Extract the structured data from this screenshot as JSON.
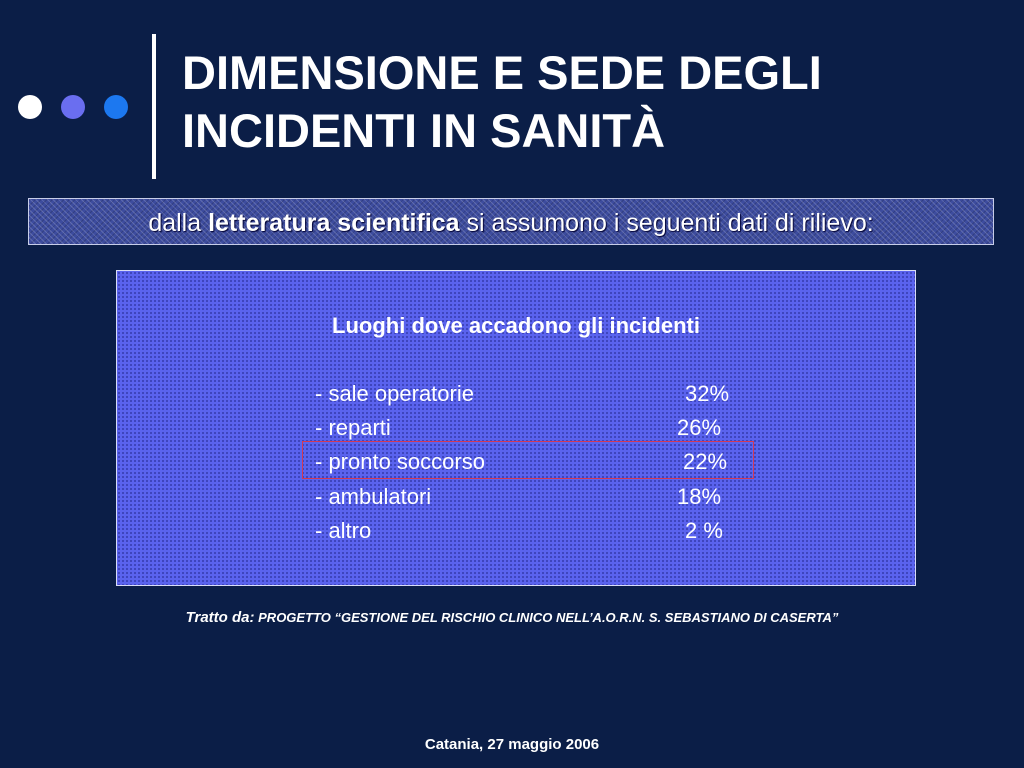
{
  "title": {
    "line1": "DIMENSIONE E SEDE DEGLI",
    "line2": "INCIDENTI IN SANITÀ"
  },
  "subtitle": {
    "prefix": "dalla ",
    "emphasis": "letteratura scientifica",
    "suffix": " si assumono i seguenti dati di rilievo:"
  },
  "panel": {
    "heading": "Luoghi dove accadono gli incidenti",
    "rows": [
      {
        "label": "- sale operatorie",
        "value": "32%"
      },
      {
        "label": "- reparti",
        "value": "26%"
      },
      {
        "label": "- pronto soccorso",
        "value": "22%"
      },
      {
        "label": "- ambulatori",
        "value": "18%"
      },
      {
        "label": "- altro",
        "value": "2 %"
      }
    ],
    "highlighted_row": 2
  },
  "source": {
    "label": "Tratto da:",
    "text": "PROGETTO “GESTIONE DEL RISCHIO CLINICO NELL’A.O.R.N. S. SEBASTIANO DI CASERTA”"
  },
  "footer": "Catania, 27 maggio 2006",
  "colors": {
    "background": "#0b1e47",
    "panel": "#5a63ee",
    "highlight": "#d23a55",
    "dot_white": "#ffffff",
    "dot_lavender": "#6a6ef0",
    "dot_blue": "#1c78f0"
  }
}
